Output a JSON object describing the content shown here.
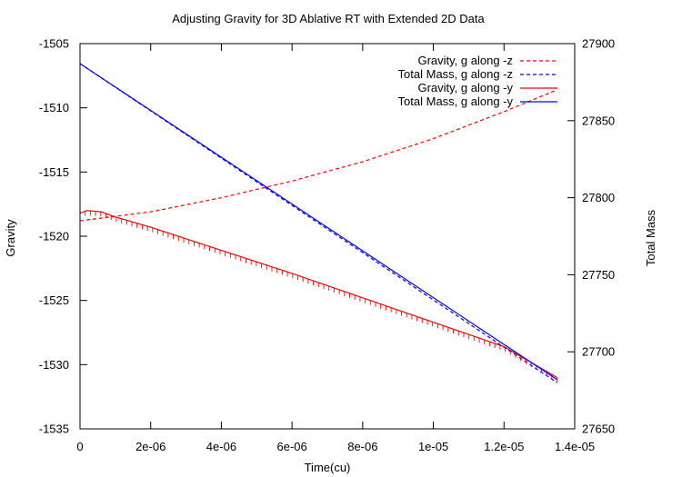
{
  "chart_data": {
    "type": "line",
    "title": "Adjusting Gravity for 3D Ablative RT with Extended 2D Data",
    "xlabel": "Time(cu)",
    "ylabel": "Gravity",
    "y2label": "Total Mass",
    "xlim": [
      0,
      1.4e-05
    ],
    "ylim": [
      -1535,
      -1505
    ],
    "y2lim": [
      27650,
      27900
    ],
    "x_ticks": [
      "0",
      "2e-06",
      "4e-06",
      "6e-06",
      "8e-06",
      "1e-05",
      "1.2e-05",
      "1.4e-05"
    ],
    "y_ticks": [
      "-1505",
      "-1510",
      "-1515",
      "-1520",
      "-1525",
      "-1530",
      "-1535"
    ],
    "y2_ticks": [
      "27900",
      "27850",
      "27800",
      "27750",
      "27700",
      "27650"
    ],
    "grid": false,
    "legend_position": "top-right",
    "series": [
      {
        "name": "Gravity, g along -z",
        "axis": "left",
        "color": "#ff0000",
        "dash": "dashed",
        "x": [
          0,
          2e-06,
          4e-06,
          6e-06,
          8e-06,
          1e-05,
          1.2e-05,
          1.35e-05
        ],
        "values": [
          -1518.8,
          -1518.1,
          -1517.0,
          -1515.7,
          -1514.2,
          -1512.4,
          -1510.3,
          -1508.6
        ]
      },
      {
        "name": "Total Mass, g along -z",
        "axis": "right",
        "color": "#0000ff",
        "dash": "dashed",
        "x": [
          0,
          1.35e-05
        ],
        "values": [
          27887,
          27680
        ]
      },
      {
        "name": "Gravity, g along -y",
        "axis": "left",
        "color": "#ff0000",
        "dash": "solid",
        "x": [
          0,
          2e-07,
          6e-07,
          1e-06,
          2e-06,
          4e-06,
          6e-06,
          8e-06,
          1e-05,
          1.2e-05,
          1.35e-05
        ],
        "values": [
          -1518.2,
          -1518.0,
          -1518.1,
          -1518.5,
          -1519.3,
          -1521.1,
          -1522.9,
          -1524.8,
          -1526.7,
          -1528.6,
          -1531.0
        ]
      },
      {
        "name": "Total Mass, g along -y",
        "axis": "right",
        "color": "#0000ff",
        "dash": "solid",
        "x": [
          0,
          1.35e-05
        ],
        "values": [
          27887,
          27682
        ]
      }
    ]
  }
}
